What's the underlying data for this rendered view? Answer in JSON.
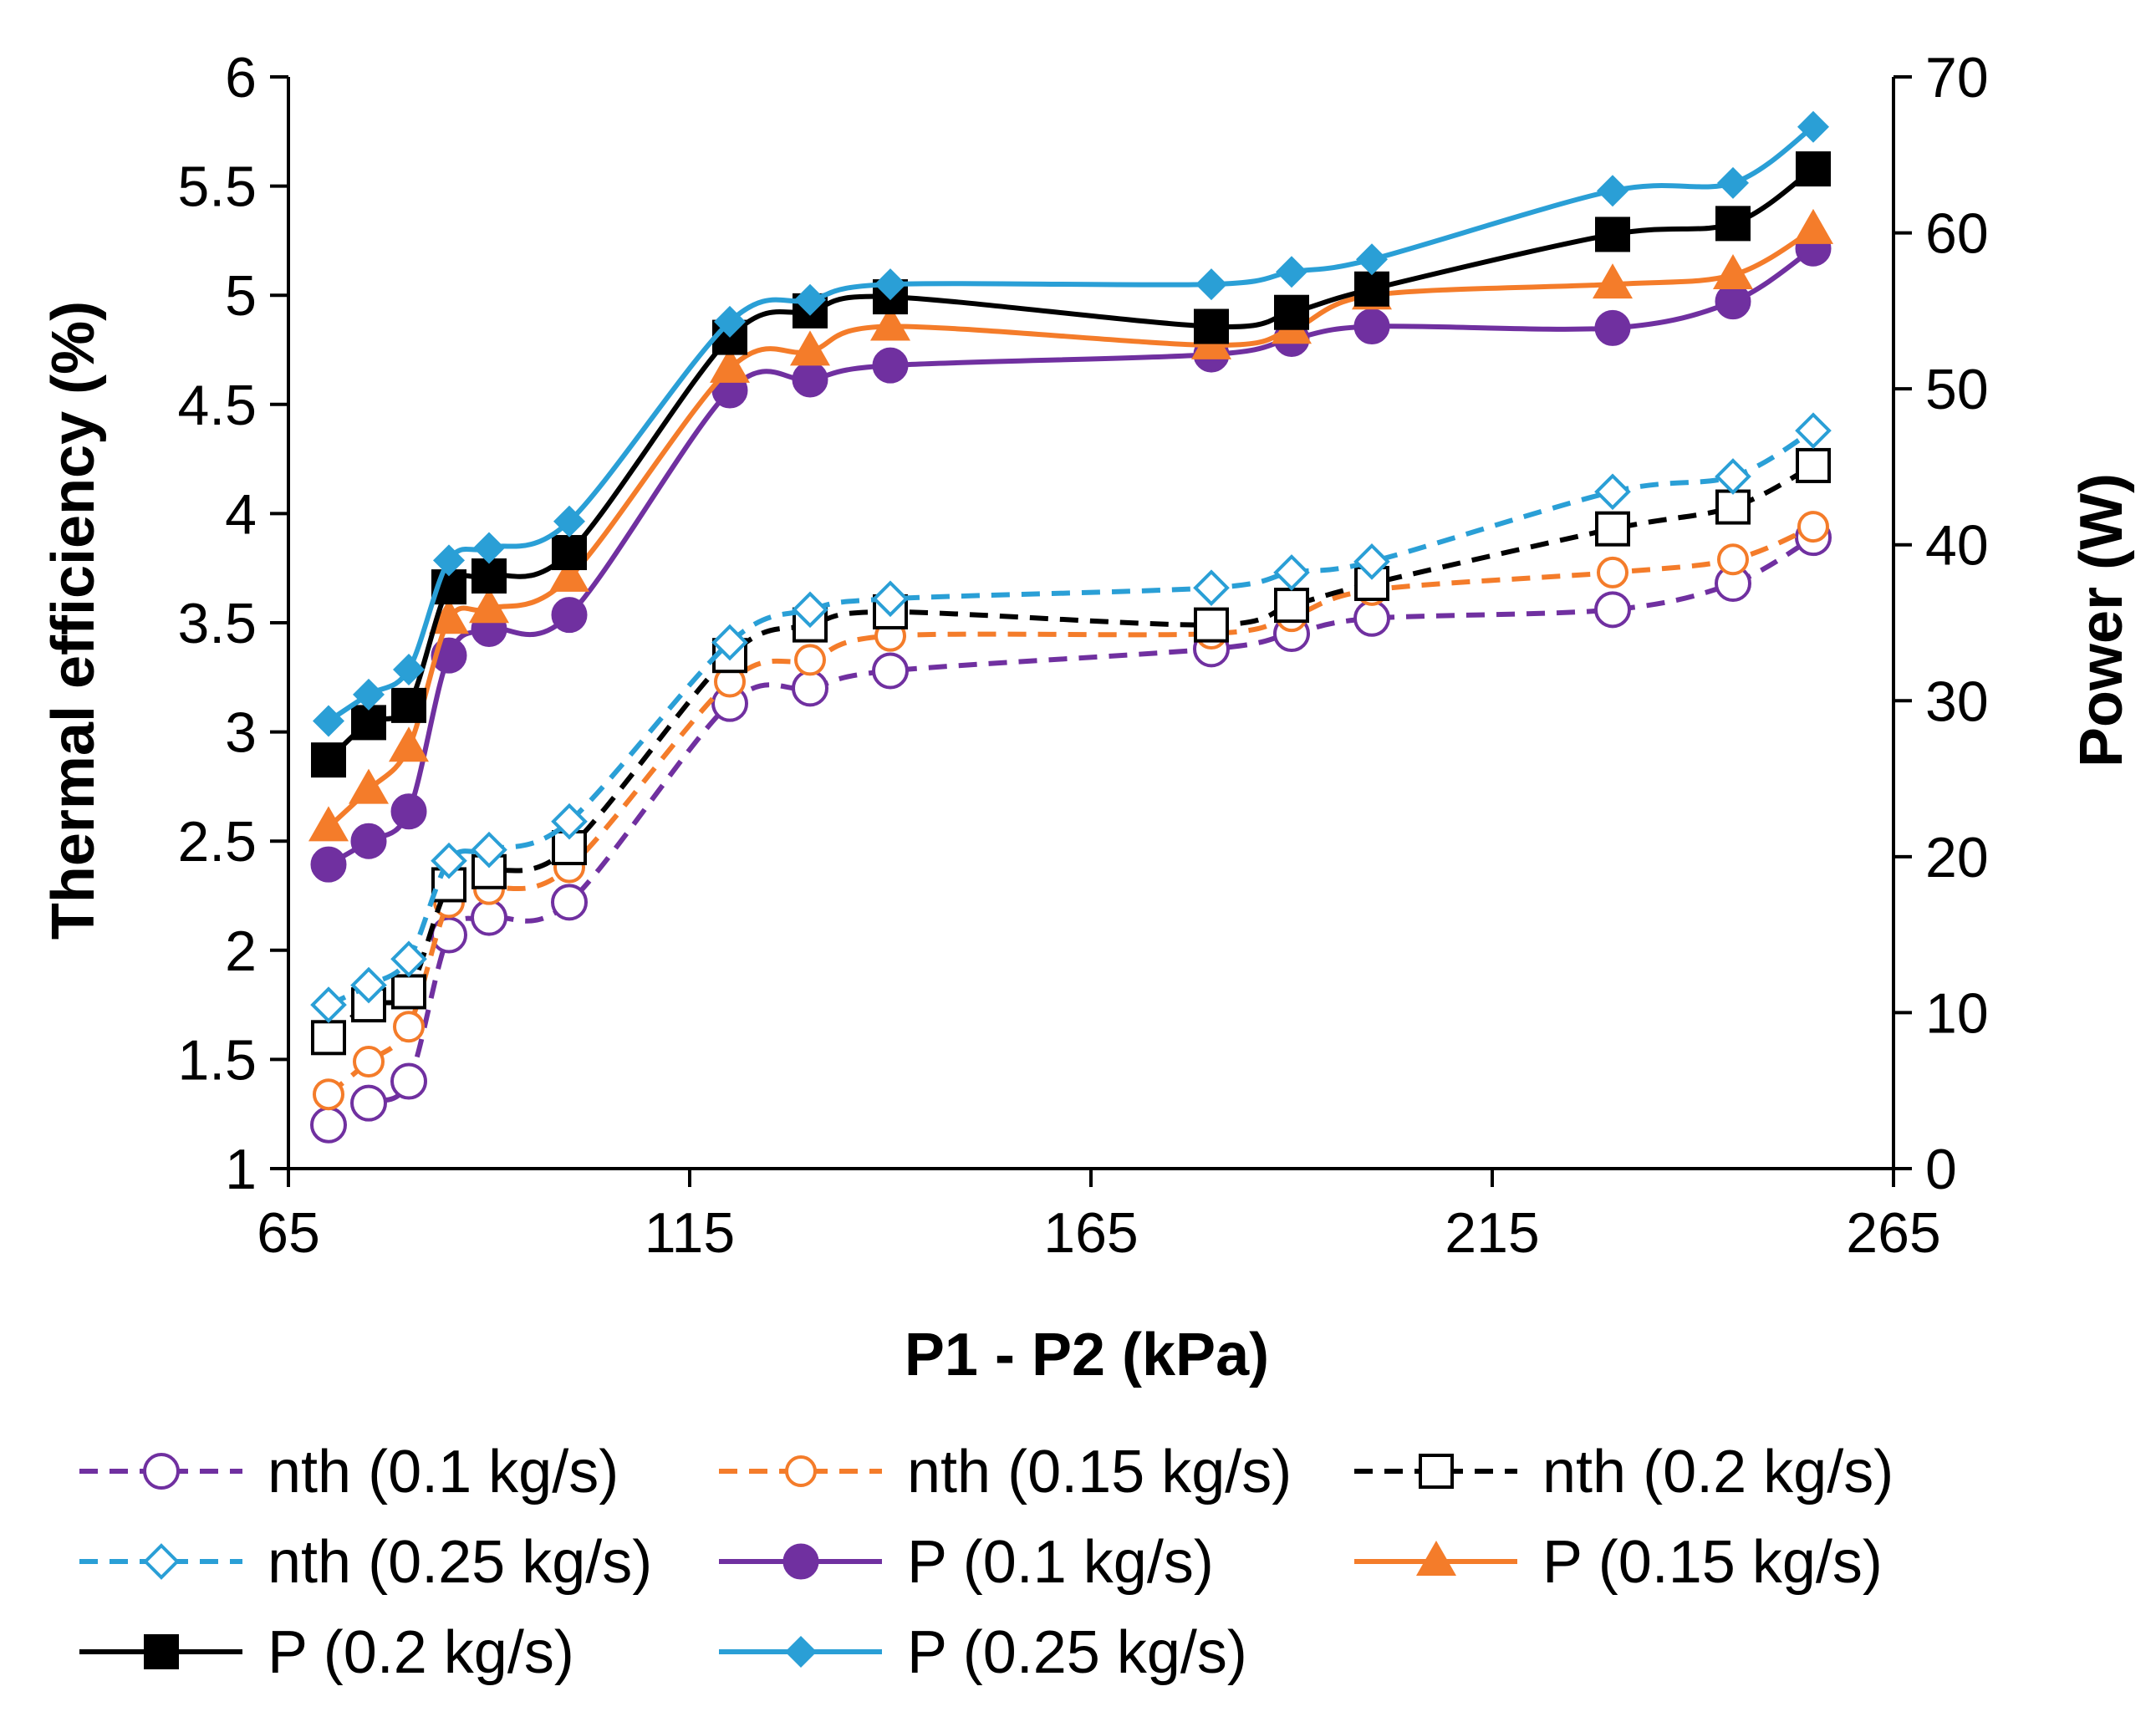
{
  "chart_data": {
    "type": "line",
    "title": "",
    "x": [
      70,
      75,
      80,
      85,
      90,
      100,
      120,
      130,
      140,
      180,
      190,
      200,
      230,
      245,
      255
    ],
    "xlabel": "P1 - P2 (kPa)",
    "ylabel": "Thermal efficiency (%)",
    "y2label": "Power (W)",
    "xlim": [
      65,
      265
    ],
    "ylim": [
      1,
      6
    ],
    "y2lim": [
      0,
      70
    ],
    "xticks": [
      "65",
      "115",
      "165",
      "215",
      "265"
    ],
    "yticks": [
      "1",
      "1.5",
      "2",
      "2.5",
      "3",
      "3.5",
      "4",
      "4.5",
      "5",
      "5.5",
      "6"
    ],
    "y2ticks": [
      "0",
      "10",
      "20",
      "30",
      "40",
      "50",
      "60",
      "70"
    ],
    "grid": false,
    "legend_position": "bottom",
    "series": [
      {
        "name": "nth (0.1 kg/s)",
        "axis": "left",
        "color": "#7030a0",
        "dash": true,
        "marker": "circle-open",
        "values": [
          1.2,
          1.3,
          1.4,
          2.07,
          2.15,
          2.22,
          3.13,
          3.2,
          3.28,
          3.38,
          3.45,
          3.52,
          3.56,
          3.68,
          3.89
        ]
      },
      {
        "name": "nth (0.15 kg/s)",
        "axis": "left",
        "color": "#f47c2a",
        "dash": true,
        "marker": "circle-open-small",
        "values": [
          1.34,
          1.49,
          1.65,
          2.22,
          2.28,
          2.38,
          3.23,
          3.33,
          3.44,
          3.45,
          3.53,
          3.65,
          3.73,
          3.79,
          3.94
        ]
      },
      {
        "name": "nth (0.2 kg/s)",
        "axis": "left",
        "color": "#000000",
        "dash": true,
        "marker": "square-open",
        "values": [
          1.6,
          1.75,
          1.81,
          2.3,
          2.36,
          2.47,
          3.35,
          3.49,
          3.55,
          3.49,
          3.58,
          3.68,
          3.93,
          4.03,
          4.22
        ]
      },
      {
        "name": "nth (0.25 kg/s)",
        "axis": "left",
        "color": "#2a9fd6",
        "dash": true,
        "marker": "diamond-open",
        "values": [
          1.75,
          1.84,
          1.96,
          2.41,
          2.46,
          2.59,
          3.41,
          3.56,
          3.61,
          3.66,
          3.73,
          3.78,
          4.1,
          4.17,
          4.38
        ]
      },
      {
        "name": "P (0.1 kg/s)",
        "axis": "right",
        "color": "#7030a0",
        "dash": false,
        "marker": "circle",
        "values": [
          19.5,
          21.0,
          22.9,
          32.9,
          34.6,
          35.5,
          49.9,
          50.6,
          51.5,
          52.2,
          53.2,
          54.0,
          53.9,
          55.6,
          59.0
        ]
      },
      {
        "name": "P (0.15 kg/s)",
        "axis": "right",
        "color": "#f47c2a",
        "dash": false,
        "marker": "triangle",
        "values": [
          21.9,
          24.3,
          27.0,
          35.2,
          35.9,
          37.9,
          51.3,
          52.4,
          54.0,
          52.8,
          53.8,
          56.0,
          56.7,
          57.3,
          60.2
        ]
      },
      {
        "name": "P (0.2 kg/s)",
        "axis": "right",
        "color": "#000000",
        "dash": false,
        "marker": "square",
        "values": [
          26.2,
          28.6,
          29.7,
          37.3,
          38.0,
          39.5,
          53.3,
          55.0,
          55.9,
          54.0,
          54.9,
          56.4,
          59.9,
          60.6,
          64.1
        ]
      },
      {
        "name": "P (0.25 kg/s)",
        "axis": "right",
        "color": "#2a9fd6",
        "dash": false,
        "marker": "diamond",
        "values": [
          28.7,
          30.4,
          32.0,
          39.0,
          39.8,
          41.5,
          54.3,
          55.7,
          56.7,
          56.7,
          57.5,
          58.3,
          62.7,
          63.2,
          66.8
        ]
      }
    ]
  }
}
